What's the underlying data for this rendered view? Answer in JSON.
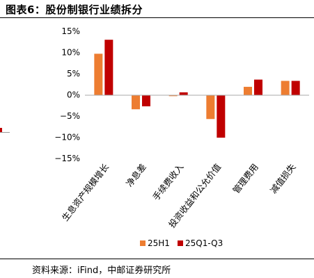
{
  "header": {
    "title": "图表6：股份制银行业绩拆分"
  },
  "footer": {
    "source": "资料来源：iFind，中邮证券研究所"
  },
  "chart_data": {
    "type": "bar",
    "title": "",
    "categories": [
      "生息资产规模增长",
      "净息差",
      "手续费收入",
      "投资收益和公允价值",
      "管理费用",
      "减值损失"
    ],
    "series": [
      {
        "name": "25H1",
        "values": [
          9.7,
          -3.4,
          -0.3,
          -5.7,
          1.9,
          3.3
        ],
        "color": "#ED7D31"
      },
      {
        "name": "25Q1-Q3",
        "values": [
          13.0,
          -2.7,
          0.6,
          -10.1,
          3.6,
          3.3
        ],
        "color": "#C00000"
      }
    ],
    "ylim": [
      -15,
      15
    ],
    "yticks": [
      "15%",
      "10%",
      "5%",
      "0%",
      "−5%",
      "−10%",
      "−15%"
    ],
    "grid": false,
    "legend": "bottom-center"
  }
}
